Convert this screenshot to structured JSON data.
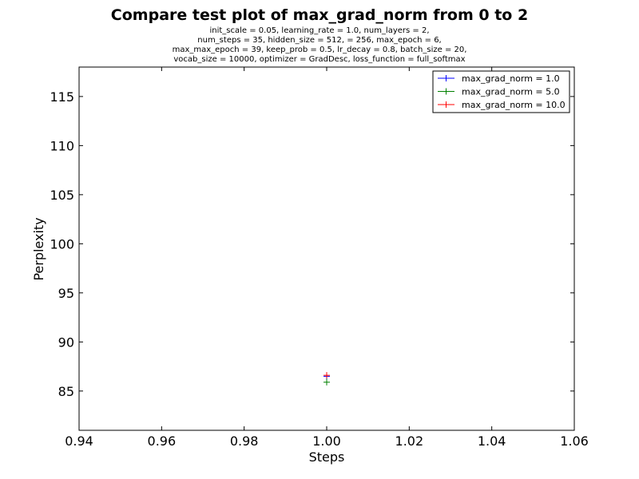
{
  "chart_data": {
    "type": "line",
    "title": "Compare test plot of max_grad_norm from 0 to 2",
    "subtitle_lines": [
      "init_scale = 0.05, learning_rate = 1.0, num_layers = 2,",
      "num_steps = 35, hidden_size = 512,   = 256, max_epoch = 6,",
      "max_max_epoch = 39, keep_prob = 0.5, lr_decay = 0.8, batch_size = 20,",
      "vocab_size = 10000, optimizer = GradDesc, loss_function = full_softmax"
    ],
    "xlabel": "Steps",
    "ylabel": "Perplexity",
    "xlim": [
      0.94,
      1.06
    ],
    "ylim": [
      81,
      118
    ],
    "xticks": [
      "0.94",
      "0.96",
      "0.98",
      "1.00",
      "1.02",
      "1.04",
      "1.06"
    ],
    "yticks": [
      "85",
      "90",
      "95",
      "100",
      "105",
      "110",
      "115"
    ],
    "legend_position": "top-right",
    "grid": false,
    "series": [
      {
        "name": "max_grad_norm = 1.0",
        "color": "#0000ff",
        "x": [
          1.0
        ],
        "y": [
          86.5
        ]
      },
      {
        "name": "max_grad_norm = 5.0",
        "color": "#008000",
        "x": [
          1.0
        ],
        "y": [
          85.9
        ]
      },
      {
        "name": "max_grad_norm = 10.0",
        "color": "#ff0000",
        "x": [
          1.0
        ],
        "y": [
          86.6
        ]
      }
    ]
  }
}
